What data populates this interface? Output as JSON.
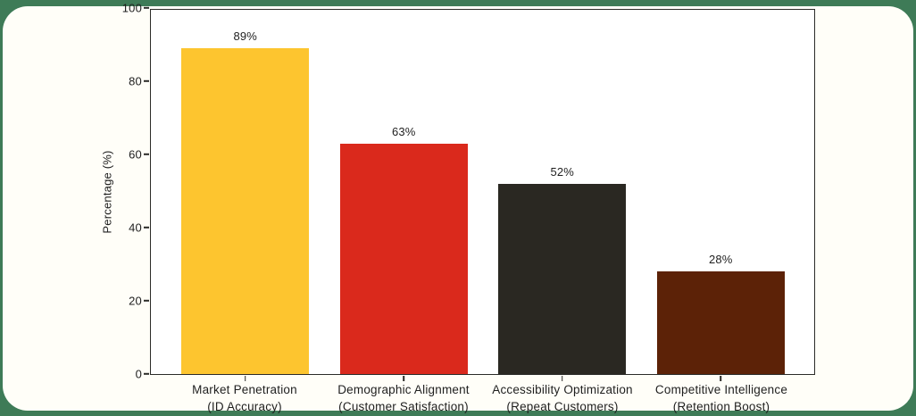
{
  "page": {
    "background_color": "#3E7B57",
    "card_background": "#FFFEF8",
    "plot_background": "#FFFFFF",
    "axis_color": "#2B2B28",
    "text_color": "#1F1F1F"
  },
  "chart_data": {
    "type": "bar",
    "title": "",
    "xlabel": "",
    "ylabel": "Percentage (%)",
    "ylim": [
      0,
      100
    ],
    "yticks": [
      0,
      20,
      40,
      60,
      80,
      100
    ],
    "grid": false,
    "legend": false,
    "categories": [
      "Market Penetration\n(ID Accuracy)",
      "Demographic Alignment\n(Customer Satisfaction)",
      "Accessibility Optimization\n(Repeat Customers)",
      "Competitive Intelligence\n(Retention Boost)"
    ],
    "values": [
      89,
      63,
      52,
      28
    ],
    "data_labels": [
      "89%",
      "63%",
      "52%",
      "28%"
    ],
    "bar_colors": [
      "#FDC52F",
      "#DA291C",
      "#2A2822",
      "#5C2207"
    ]
  }
}
